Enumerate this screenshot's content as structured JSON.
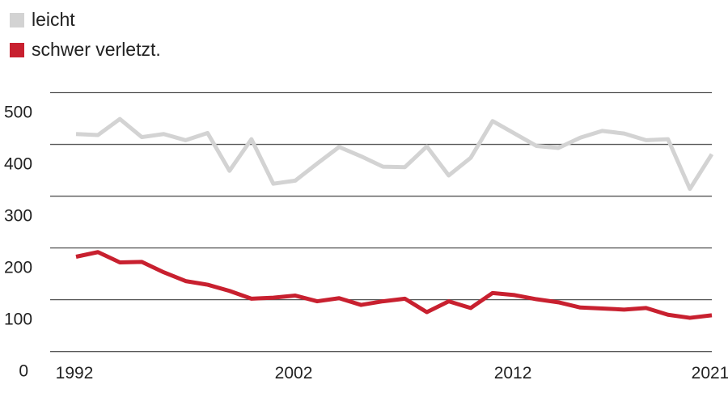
{
  "chart_data": {
    "type": "line",
    "x": [
      1992,
      1993,
      1994,
      1995,
      1996,
      1997,
      1998,
      1999,
      2000,
      2001,
      2002,
      2003,
      2004,
      2005,
      2006,
      2007,
      2008,
      2009,
      2010,
      2011,
      2012,
      2013,
      2014,
      2015,
      2016,
      2017,
      2018,
      2019,
      2020,
      2021
    ],
    "series": [
      {
        "name": "leicht",
        "color": "#d3d3d3",
        "values": [
          420,
          418,
          449,
          414,
          420,
          408,
          422,
          349,
          410,
          324,
          330,
          363,
          395,
          377,
          357,
          356,
          396,
          340,
          374,
          445,
          421,
          397,
          393,
          413,
          426,
          421,
          408,
          410,
          314,
          381
        ]
      },
      {
        "name": "schwer verletzt.",
        "color": "#c8202f",
        "values": [
          183,
          192,
          172,
          173,
          153,
          136,
          129,
          117,
          102,
          104,
          108,
          97,
          103,
          90,
          97,
          102,
          76,
          97,
          84,
          113,
          109,
          101,
          95,
          85,
          83,
          81,
          84,
          71,
          65,
          70
        ]
      }
    ],
    "ylim": [
      0,
      500
    ],
    "yticks": [
      0,
      100,
      200,
      300,
      400,
      500
    ],
    "xticks": [
      1992,
      2002,
      2012,
      2021
    ],
    "grid": true,
    "legend": "top-left"
  }
}
